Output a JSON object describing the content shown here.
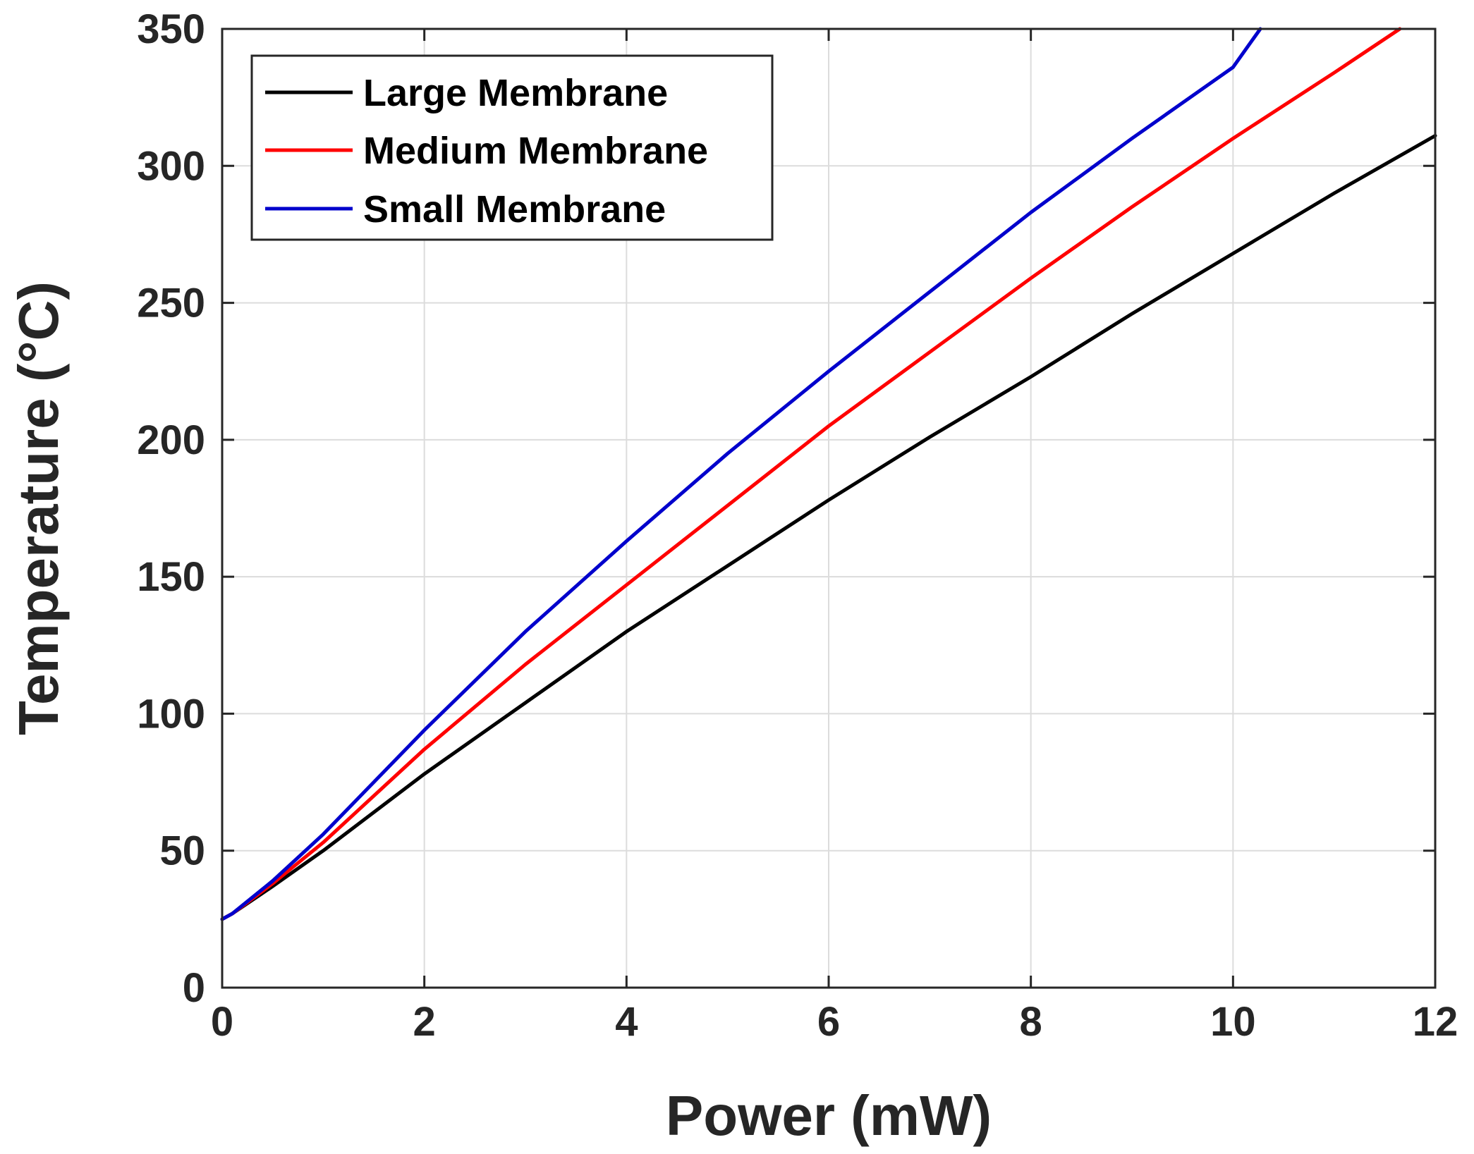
{
  "chart_data": {
    "type": "line",
    "title": "",
    "xlabel": "Power (mW)",
    "ylabel": "Temperature (°C)",
    "xlim": [
      0,
      12
    ],
    "ylim": [
      0,
      350
    ],
    "xticks": [
      0,
      2,
      4,
      6,
      8,
      10,
      12
    ],
    "yticks": [
      0,
      50,
      100,
      150,
      200,
      250,
      300,
      350
    ],
    "grid": true,
    "legend_position": "top-left",
    "series": [
      {
        "name": "Large Membrane",
        "color": "#000000",
        "x": [
          0,
          0.1,
          0.5,
          1,
          2,
          3,
          4,
          5,
          6,
          7,
          8,
          9,
          10,
          11,
          12
        ],
        "y": [
          25,
          27,
          37,
          50,
          78,
          104,
          130,
          154,
          178,
          201,
          223,
          246,
          268,
          290,
          311
        ]
      },
      {
        "name": "Medium Membrane",
        "color": "#ff0000",
        "x": [
          0,
          0.1,
          0.5,
          1,
          2,
          3,
          4,
          5,
          6,
          7,
          8,
          9,
          10,
          11,
          11.65
        ],
        "y": [
          25,
          27,
          38,
          53,
          87,
          118,
          147,
          176,
          205,
          232,
          259,
          285,
          310,
          334,
          350
        ]
      },
      {
        "name": "Small Membrane",
        "color": "#0000cc",
        "x": [
          0,
          0.1,
          0.5,
          1,
          2,
          3,
          4,
          5,
          6,
          7,
          8,
          9,
          10,
          10.27
        ],
        "y": [
          25,
          27,
          39,
          56,
          94,
          130,
          163,
          195,
          225,
          254,
          283,
          310,
          336,
          350
        ]
      }
    ]
  }
}
